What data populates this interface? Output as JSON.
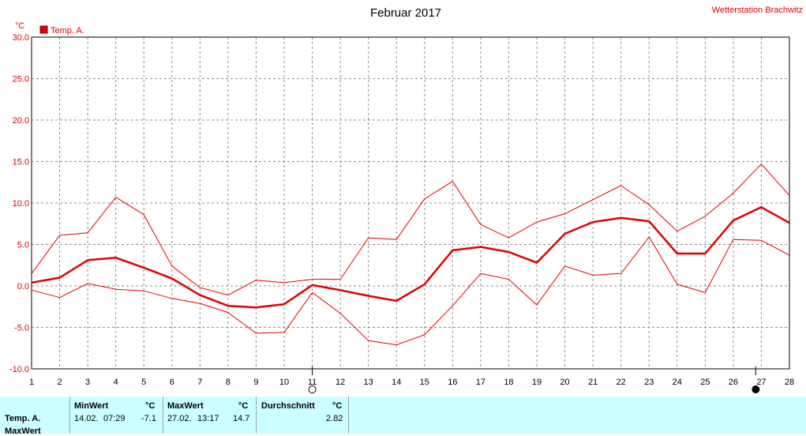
{
  "chart_data": {
    "type": "line",
    "title": "Februar 2017",
    "station": "Wetterstation Brachwitz",
    "yunit": "°C",
    "ylim": [
      -10,
      30
    ],
    "yticks": [
      "-10.0",
      "-5.0",
      "0.0",
      "5.0",
      "10.0",
      "15.0",
      "20.0",
      "25.0",
      "30.0"
    ],
    "x": [
      1,
      2,
      3,
      4,
      5,
      6,
      7,
      8,
      9,
      10,
      11,
      12,
      13,
      14,
      15,
      16,
      17,
      18,
      19,
      20,
      21,
      22,
      23,
      24,
      25,
      26,
      27,
      28
    ],
    "xticks": [
      "1",
      "2",
      "3",
      "4",
      "5",
      "6",
      "7",
      "8",
      "9",
      "10",
      "11",
      "12",
      "13",
      "14",
      "15",
      "16",
      "17",
      "18",
      "19",
      "20",
      "21",
      "22",
      "23",
      "24",
      "25",
      "26",
      "27",
      "28"
    ],
    "legend": "Temp. A.",
    "grid": true,
    "color": "#e00000",
    "series": [
      {
        "role": "max",
        "values": [
          1.5,
          6.1,
          6.4,
          10.7,
          8.6,
          2.4,
          -0.2,
          -1.1,
          0.7,
          0.4,
          0.8,
          0.8,
          5.8,
          5.6,
          10.5,
          12.6,
          7.4,
          5.8,
          7.7,
          8.7,
          10.4,
          12.1,
          9.8,
          6.6,
          8.4,
          11.2,
          14.7,
          10.9
        ]
      },
      {
        "role": "avg",
        "values": [
          0.4,
          1.0,
          3.1,
          3.4,
          2.2,
          0.9,
          -1.1,
          -2.4,
          -2.6,
          -2.2,
          0.1,
          -0.5,
          -1.2,
          -1.8,
          0.2,
          4.3,
          4.7,
          4.1,
          2.8,
          6.3,
          7.7,
          8.2,
          7.8,
          3.9,
          3.9,
          7.9,
          9.5,
          7.6
        ]
      },
      {
        "role": "min",
        "values": [
          -0.5,
          -1.4,
          0.3,
          -0.4,
          -0.6,
          -1.5,
          -2.1,
          -3.2,
          -5.7,
          -5.6,
          -0.8,
          -3.3,
          -6.6,
          -7.1,
          -5.9,
          -2.4,
          1.5,
          0.8,
          -2.3,
          2.4,
          1.3,
          1.5,
          5.9,
          0.2,
          -0.8,
          5.6,
          5.5,
          3.7
        ]
      }
    ],
    "moon_markers": [
      {
        "day": 11,
        "phase": "full"
      },
      {
        "day": 26.8,
        "phase": "new"
      }
    ]
  },
  "stats": {
    "row_label_1": "Temp. A.",
    "row_label_2": "MaxWert",
    "min_header": "MinWert",
    "min_unit": "°C",
    "min_date": "14.02.",
    "min_time": "07:29",
    "min_value": "-7.1",
    "max_header": "MaxWert",
    "max_unit": "°C",
    "max_date": "27.02.",
    "max_time": "13:17",
    "max_value": "14.7",
    "avg_header": "Durchschnitt",
    "avg_unit": "°C",
    "avg_value": "2.82"
  }
}
